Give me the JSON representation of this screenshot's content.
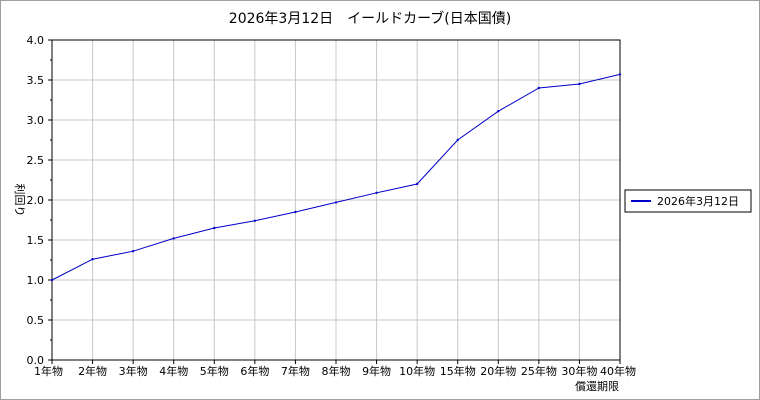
{
  "chart_data": {
    "type": "line",
    "title": "2026年3月12日　イールドカーブ(日本国債)",
    "xlabel": "償還期限",
    "ylabel": "利回り",
    "categories": [
      "1年物",
      "2年物",
      "3年物",
      "4年物",
      "5年物",
      "6年物",
      "7年物",
      "8年物",
      "9年物",
      "10年物",
      "15年物",
      "20年物",
      "25年物",
      "30年物",
      "40年物"
    ],
    "series": [
      {
        "name": "2026年3月12日",
        "color": "#0000cc",
        "values": [
          1.0,
          1.26,
          1.36,
          1.52,
          1.65,
          1.74,
          1.85,
          1.97,
          2.09,
          2.2,
          2.75,
          3.11,
          3.4,
          3.45,
          3.57
        ]
      }
    ],
    "ylim": [
      0,
      4.0
    ],
    "yticks": [
      "0.0",
      "0.5",
      "1.0",
      "1.5",
      "2.0",
      "2.5",
      "3.0",
      "3.5",
      "4.0"
    ],
    "grid": true,
    "legend_position": "right"
  }
}
